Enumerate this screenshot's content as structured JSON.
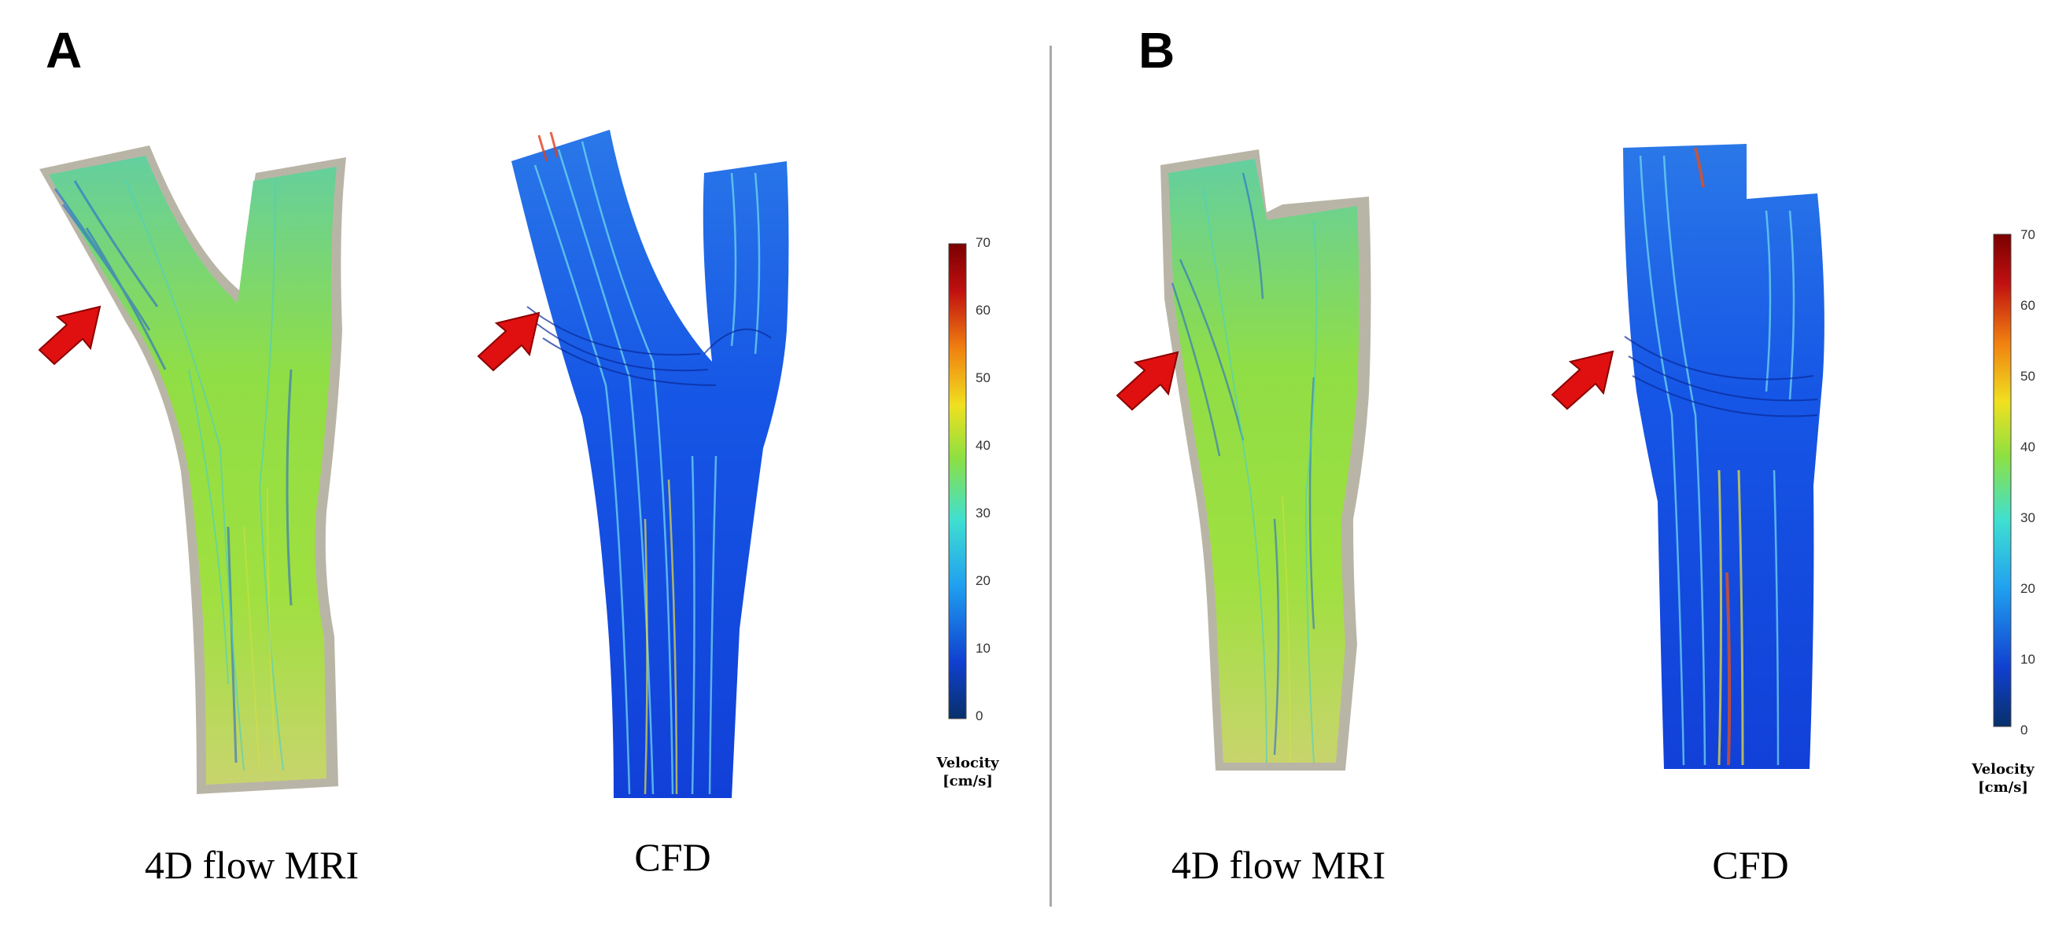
{
  "panels": [
    {
      "letter": "A",
      "left_caption": "4D flow MRI",
      "right_caption": "CFD",
      "colorbar": {
        "ticks": [
          "70",
          "60",
          "50",
          "40",
          "30",
          "20",
          "10",
          "0"
        ],
        "title_line1": "Velocity",
        "title_line2": "[cm/s]"
      }
    },
    {
      "letter": "B",
      "left_caption": "4D flow MRI",
      "right_caption": "CFD",
      "colorbar": {
        "ticks": [
          "70",
          "60",
          "50",
          "40",
          "30",
          "20",
          "10",
          "0"
        ],
        "title_line1": "Velocity",
        "title_line2": "[cm/s]"
      }
    }
  ],
  "colors": {
    "arrow": "#e01010",
    "mri_flow": "#7fdc3a",
    "cfd_flow": "#1448e0",
    "vessel_wall": "#b9b5a6",
    "divider": "#a9a9a9"
  },
  "colorbar_scale": [
    "#08306b",
    "#1040d0",
    "#20a0f0",
    "#40e0d0",
    "#8ee040",
    "#f0e020",
    "#f08010",
    "#c01010",
    "#7a0000"
  ]
}
